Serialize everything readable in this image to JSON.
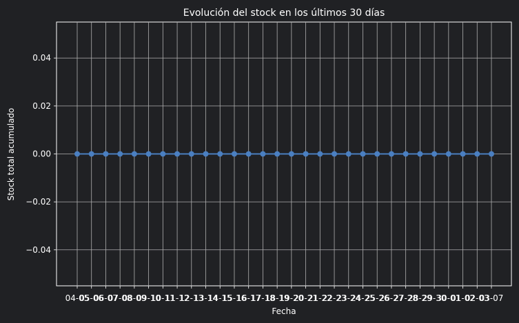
{
  "chart_data": {
    "type": "line",
    "title": "Evolución del stock en los últimos 30 días",
    "xlabel": "Fecha",
    "ylabel": "Stock total acumulado",
    "x": [
      "04-05",
      "05-06",
      "06-07",
      "07-08",
      "08-09",
      "09-10",
      "10-11",
      "11-12",
      "12-13",
      "13-14",
      "14-15",
      "15-16",
      "16-17",
      "17-18",
      "18-19",
      "19-20",
      "20-21",
      "21-22",
      "22-23",
      "23-24",
      "24-25",
      "25-26",
      "26-27",
      "27-28",
      "28-29",
      "29-30",
      "30-01",
      "01-02",
      "02-03",
      "03-07"
    ],
    "series": [
      {
        "values": [
          0,
          0,
          0,
          0,
          0,
          0,
          0,
          0,
          0,
          0,
          0,
          0,
          0,
          0,
          0,
          0,
          0,
          0,
          0,
          0,
          0,
          0,
          0,
          0,
          0,
          0,
          0,
          0,
          0,
          0
        ]
      }
    ],
    "ylim": [
      -0.055,
      0.055
    ],
    "yticks": [
      -0.04,
      -0.02,
      0.0,
      0.02,
      0.04
    ],
    "ytick_labels": [
      "−0.04",
      "−0.02",
      "0.00",
      "0.02",
      "0.04"
    ],
    "grid": true,
    "marker": "circle"
  },
  "colors": {
    "background": "#202124",
    "plot_area": "#202124",
    "grid": "#b0b0b0",
    "axis": "#ffffff",
    "series": "#4a7fc1"
  }
}
